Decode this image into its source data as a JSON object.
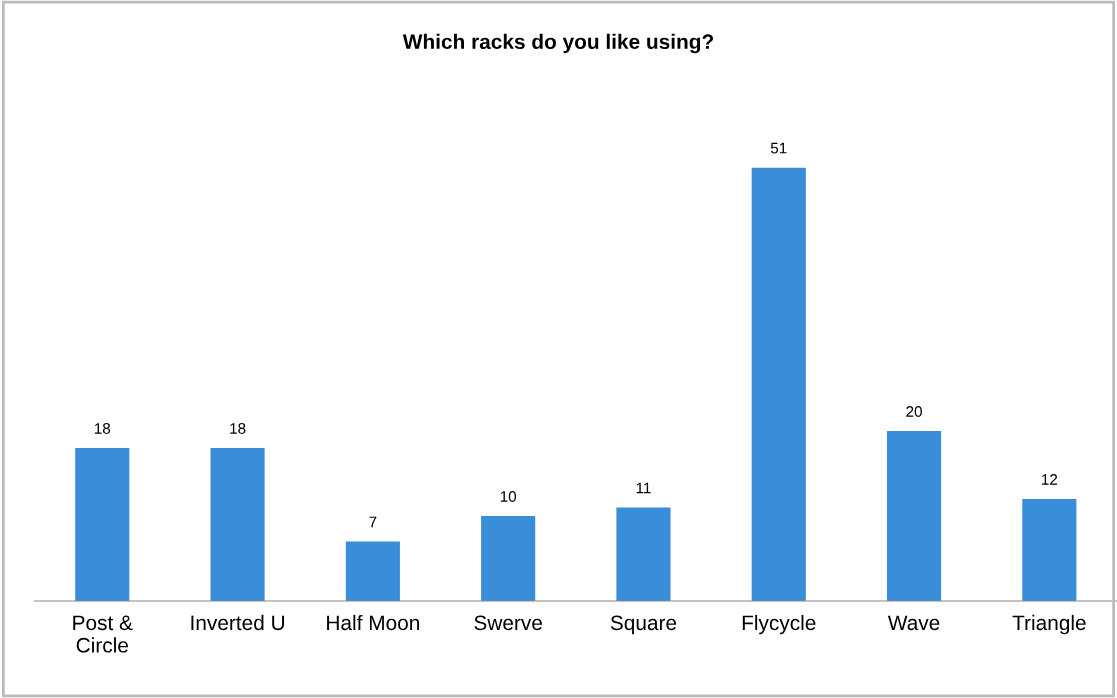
{
  "chart_data": {
    "type": "bar",
    "title": "Which racks do you like using?",
    "categories": [
      "Post &\nCircle",
      "Inverted U",
      "Half Moon",
      "Swerve",
      "Square",
      "Flycycle",
      "Wave",
      "Triangle"
    ],
    "values": [
      18,
      18,
      7,
      10,
      11,
      51,
      20,
      12
    ],
    "color": "#3a8dd8",
    "data_labels": true,
    "grid": false,
    "legend": false
  }
}
